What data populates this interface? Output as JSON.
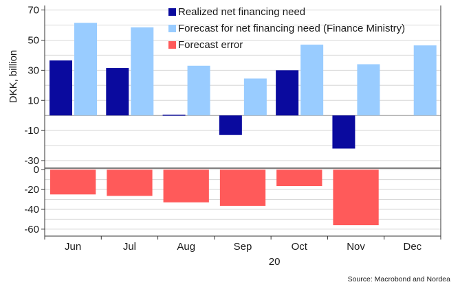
{
  "chart_data": {
    "type": "bar",
    "categories": [
      "Jun",
      "Jul",
      "Aug",
      "Sep",
      "Oct",
      "Nov",
      "Dec"
    ],
    "xlabel": "20",
    "ylabel": "DKK, billion",
    "series": [
      {
        "name": "Realized net financing need",
        "values": [
          36.5,
          31.5,
          0.5,
          -13,
          30,
          -22,
          null
        ],
        "color": "#0a0a9e"
      },
      {
        "name": "Forecast for net financing need (Finance Ministry)",
        "values": [
          61.5,
          58.5,
          33,
          24.5,
          47,
          34,
          46.5
        ],
        "color": "#99ccff"
      },
      {
        "name": "Forecast error",
        "values": [
          -25,
          -26.5,
          -33,
          -36.5,
          -16.5,
          -56,
          null
        ],
        "color": "#ff5a5a"
      }
    ],
    "top_panel": {
      "ylim": [
        -35,
        73
      ],
      "ticks": [
        70,
        50,
        30,
        10,
        -10,
        -30
      ]
    },
    "bottom_panel": {
      "ylim": [
        -67,
        1.5
      ],
      "ticks": [
        0,
        -20,
        -40,
        -60
      ]
    },
    "grid": true,
    "legend_position": "top-right",
    "source": "Source: Macrobond and Nordea"
  }
}
